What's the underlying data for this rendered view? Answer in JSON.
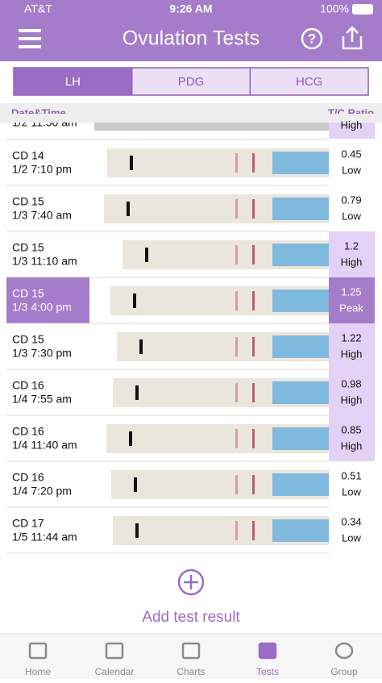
{
  "status_bar": {
    "carrier": "AT&T",
    "time": "9:26 AM",
    "battery": "100%"
  },
  "header": {
    "title": "Ovulation Tests"
  },
  "tabs": [
    "LH",
    "PDG",
    "HCG"
  ],
  "columns": {
    "date": "Date&Time",
    "ratio": "T/C Ratio"
  },
  "partial_row": {
    "time": "1/2 11:50 am",
    "level": "High"
  },
  "rows": [
    {
      "day": "CD 14",
      "time": "1/2 7:10 pm",
      "ratio": "0.45",
      "level": "Low"
    },
    {
      "day": "CD 15",
      "time": "1/3 7:40 am",
      "ratio": "0.79",
      "level": "Low"
    },
    {
      "day": "CD 15",
      "time": "1/3 11:10 am",
      "ratio": "1.2",
      "level": "High"
    },
    {
      "day": "CD 15",
      "time": "1/3 4:00 pm",
      "ratio": "1.25",
      "level": "Peak"
    },
    {
      "day": "CD 15",
      "time": "1/3 7:30 pm",
      "ratio": "1.22",
      "level": "High"
    },
    {
      "day": "CD 16",
      "time": "1/4 7:55 am",
      "ratio": "0.98",
      "level": "High"
    },
    {
      "day": "CD 16",
      "time": "1/4 11:40 am",
      "ratio": "0.85",
      "level": "High"
    },
    {
      "day": "CD 16",
      "time": "1/4 7:20 pm",
      "ratio": "0.51",
      "level": "Low"
    },
    {
      "day": "CD 17",
      "time": "1/5 11:44 am",
      "ratio": "0.34",
      "level": "Low"
    }
  ],
  "add_button": "Add test result",
  "tab_bar": [
    "Home",
    "Calendar",
    "Charts",
    "Tests",
    "Group"
  ]
}
